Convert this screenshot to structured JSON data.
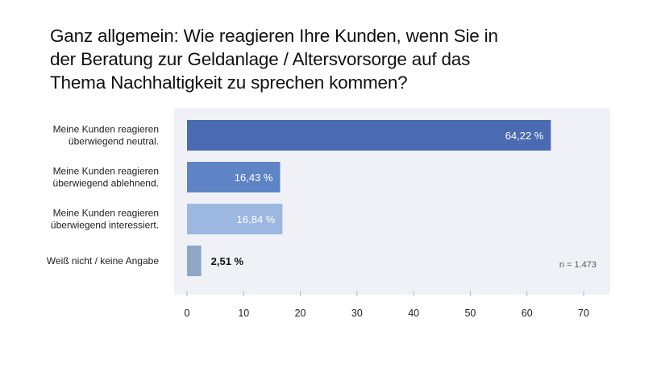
{
  "chart_data": {
    "type": "bar",
    "orientation": "horizontal",
    "title_lines": [
      "Ganz allgemein: Wie reagieren Ihre Kunden, wenn Sie in",
      "der Beratung zur Geldanlage / Altersvorsorge auf das",
      "Thema Nachhaltigkeit zu sprechen kommen?"
    ],
    "categories": [
      [
        "Meine Kunden reagieren",
        "überwiegend neutral."
      ],
      [
        "Meine Kunden reagieren",
        "überwiegend ablehnend."
      ],
      [
        "Meine Kunden reagieren",
        "überwiegend interessiert."
      ],
      [
        "Weiß nicht / keine Angabe"
      ]
    ],
    "values": [
      64.22,
      16.43,
      16.84,
      2.51
    ],
    "value_labels": [
      "64,22 %",
      "16,43 %",
      "16,84 %",
      "2,51 %"
    ],
    "colors": [
      "#4a6bb2",
      "#5f84c6",
      "#9db8e0",
      "#8fa6c6"
    ],
    "xlim": [
      0,
      70
    ],
    "xticks": [
      0,
      10,
      20,
      30,
      40,
      50,
      60,
      70
    ],
    "xlabel": "",
    "ylabel": "",
    "annotation": "n = 1.473",
    "plot_background": "#eff1f7",
    "grid": false
  }
}
